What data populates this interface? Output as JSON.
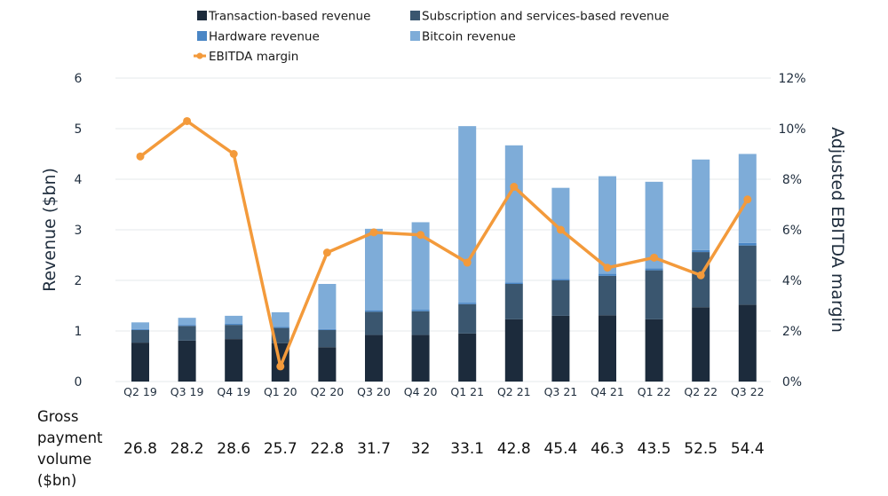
{
  "chart_data": {
    "type": "bar",
    "stacked": true,
    "categories": [
      "Q2 19",
      "Q3 19",
      "Q4 19",
      "Q1 20",
      "Q2 20",
      "Q3 20",
      "Q4 20",
      "Q1 21",
      "Q2 21",
      "Q3 21",
      "Q4 21",
      "Q1 22",
      "Q2 22",
      "Q3 22"
    ],
    "series": [
      {
        "name": "Transaction-based revenue",
        "color": "#1c2b3c",
        "values": [
          0.77,
          0.81,
          0.84,
          0.76,
          0.68,
          0.92,
          0.92,
          0.95,
          1.23,
          1.3,
          1.31,
          1.23,
          1.47,
          1.52
        ]
      },
      {
        "name": "Subscription and services-based revenue",
        "color": "#3a566f",
        "values": [
          0.25,
          0.29,
          0.28,
          0.3,
          0.34,
          0.46,
          0.47,
          0.58,
          0.7,
          0.7,
          0.78,
          0.97,
          1.09,
          1.17
        ]
      },
      {
        "name": "Hardware revenue",
        "color": "#4a86c5",
        "values": [
          0.02,
          0.02,
          0.02,
          0.02,
          0.02,
          0.03,
          0.03,
          0.03,
          0.03,
          0.03,
          0.04,
          0.04,
          0.04,
          0.05
        ]
      },
      {
        "name": "Bitcoin revenue",
        "color": "#7eacd8",
        "values": [
          0.13,
          0.14,
          0.16,
          0.29,
          0.89,
          1.61,
          1.73,
          3.49,
          2.71,
          1.8,
          1.93,
          1.71,
          1.79,
          1.76
        ]
      }
    ],
    "line_series": {
      "name": "EBITDA margin",
      "color": "#f39a3b",
      "axis": "right",
      "values": [
        8.9,
        10.3,
        9.0,
        0.6,
        5.1,
        5.9,
        5.8,
        4.7,
        7.7,
        6.0,
        4.5,
        4.9,
        4.2,
        7.2
      ]
    },
    "ylabel": "Revenue ($bn)",
    "ylim": [
      0,
      6
    ],
    "yticks": [
      "0",
      "1",
      "2",
      "3",
      "4",
      "5",
      "6"
    ],
    "y2label": "Adjusted EBITDA margin",
    "y2lim": [
      0,
      12
    ],
    "y2ticks": [
      "0%",
      "2%",
      "4%",
      "6%",
      "8%",
      "10%",
      "12%"
    ],
    "grid": true,
    "legend_placement": "top",
    "gpv_label": "Gross payment volume ($bn)",
    "gpv_label_lines": [
      "Gross",
      "payment",
      "volume",
      "($bn)"
    ],
    "gpv_values": [
      "26.8",
      "28.2",
      "28.6",
      "25.7",
      "22.8",
      "31.7",
      "32",
      "33.1",
      "42.8",
      "45.4",
      "46.3",
      "43.5",
      "52.5",
      "54.4"
    ]
  }
}
